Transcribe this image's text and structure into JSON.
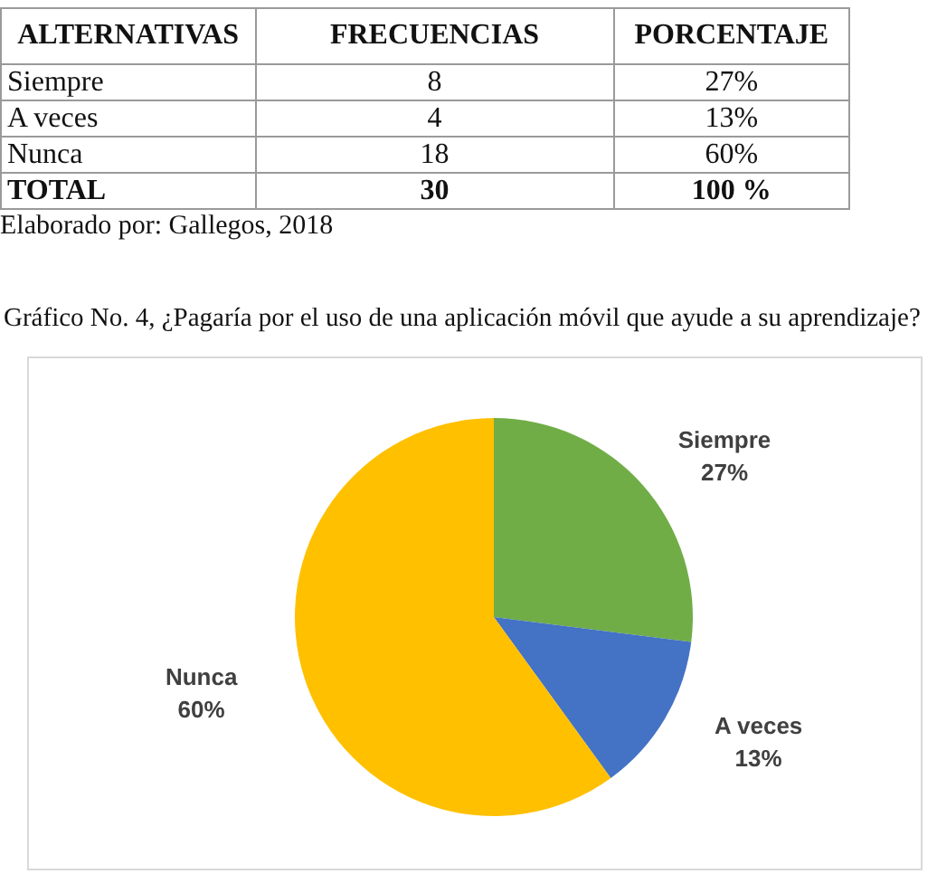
{
  "chart_data": [
    {
      "type": "other",
      "xlabel": "ALTERNATIVAS",
      "categories": [
        "Siempre",
        "A veces",
        "Nunca",
        "TOTAL"
      ],
      "series": [
        {
          "name": "FRECUENCIAS",
          "values": [
            8,
            4,
            18,
            30
          ]
        },
        {
          "name": "PORCENTAJE",
          "values": [
            27,
            13,
            60,
            100
          ],
          "value_labels": [
            "27%",
            "13%",
            "60%",
            "100 %"
          ]
        }
      ],
      "data_labels": true,
      "annotations": [
        "Elaborado por: Gallegos, 2018"
      ]
    },
    {
      "type": "pie",
      "title": "Gráfico No. 4, ¿Pagaría por el uso de una aplicación móvil que ayude a su aprendizaje?",
      "categories": [
        "Siempre",
        "A veces",
        "Nunca"
      ],
      "values": [
        27,
        13,
        60
      ],
      "colors": [
        "#70ad47",
        "#4472c4",
        "#ffc000"
      ],
      "value_labels": [
        "27%",
        "13%",
        "60%"
      ]
    }
  ]
}
